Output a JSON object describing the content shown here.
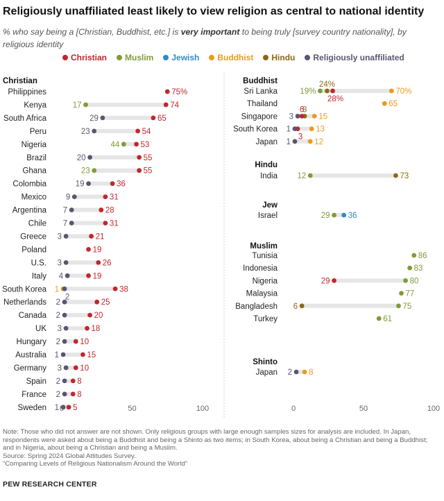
{
  "title": "Religiously unaffiliated least likely to view religion as central to national identity",
  "subtitle_pre": "% who say being a [Christian, Buddhist, etc.] is ",
  "subtitle_bold": "very important",
  "subtitle_post": " to being truly [survey country nationality], by religious identity",
  "legend": [
    {
      "key": "christian",
      "label": "Christian",
      "color": "#c1272d"
    },
    {
      "key": "muslim",
      "label": "Muslim",
      "color": "#7f9b3a"
    },
    {
      "key": "jewish",
      "label": "Jewish",
      "color": "#2e8bc9"
    },
    {
      "key": "buddhist",
      "label": "Buddhist",
      "color": "#ec9a1e"
    },
    {
      "key": "hindu",
      "label": "Hindu",
      "color": "#8b6914"
    },
    {
      "key": "unaffiliated",
      "label": "Religiously unaffiliated",
      "color": "#5b5572"
    }
  ],
  "colors": {
    "christian": "#c1272d",
    "muslim": "#7f9b3a",
    "jewish": "#2e8bc9",
    "buddhist": "#ec9a1e",
    "hindu": "#8b6914",
    "unaffiliated": "#5b5572",
    "bar": "#e6e6e6",
    "axis": "#bbbbbb"
  },
  "chart_data": [
    {
      "type": "dot",
      "panel": "left",
      "section": "Christian",
      "xlim": [
        0,
        100
      ],
      "ticks": [
        0,
        50,
        100
      ],
      "rows": [
        {
          "country": "Philippines",
          "points": [
            {
              "g": "christian",
              "v": 75,
              "label": "75%"
            }
          ]
        },
        {
          "country": "Kenya",
          "points": [
            {
              "g": "christian",
              "v": 74,
              "label": "74"
            },
            {
              "g": "muslim",
              "v": 17,
              "label": "17"
            }
          ]
        },
        {
          "country": "South Africa",
          "points": [
            {
              "g": "christian",
              "v": 65,
              "label": "65"
            },
            {
              "g": "unaffiliated",
              "v": 29,
              "label": "29"
            }
          ]
        },
        {
          "country": "Peru",
          "points": [
            {
              "g": "christian",
              "v": 54,
              "label": "54"
            },
            {
              "g": "unaffiliated",
              "v": 23,
              "label": "23"
            }
          ]
        },
        {
          "country": "Nigeria",
          "points": [
            {
              "g": "christian",
              "v": 53,
              "label": "53"
            },
            {
              "g": "muslim",
              "v": 44,
              "label": "44"
            }
          ]
        },
        {
          "country": "Brazil",
          "points": [
            {
              "g": "christian",
              "v": 55,
              "label": "55"
            },
            {
              "g": "unaffiliated",
              "v": 20,
              "label": "20"
            }
          ]
        },
        {
          "country": "Ghana",
          "points": [
            {
              "g": "christian",
              "v": 55,
              "label": "55"
            },
            {
              "g": "muslim",
              "v": 23,
              "label": "23"
            }
          ]
        },
        {
          "country": "Colombia",
          "points": [
            {
              "g": "christian",
              "v": 36,
              "label": "36"
            },
            {
              "g": "unaffiliated",
              "v": 19,
              "label": "19"
            }
          ]
        },
        {
          "country": "Mexico",
          "points": [
            {
              "g": "christian",
              "v": 31,
              "label": "31"
            },
            {
              "g": "unaffiliated",
              "v": 9,
              "label": "9"
            }
          ]
        },
        {
          "country": "Argentina",
          "points": [
            {
              "g": "christian",
              "v": 28,
              "label": "28"
            },
            {
              "g": "unaffiliated",
              "v": 7,
              "label": "7"
            }
          ]
        },
        {
          "country": "Chile",
          "points": [
            {
              "g": "christian",
              "v": 31,
              "label": "31"
            },
            {
              "g": "unaffiliated",
              "v": 7,
              "label": "7"
            }
          ]
        },
        {
          "country": "Greece",
          "points": [
            {
              "g": "christian",
              "v": 21,
              "label": "21"
            },
            {
              "g": "unaffiliated",
              "v": 3,
              "label": "3"
            }
          ]
        },
        {
          "country": "Poland",
          "points": [
            {
              "g": "christian",
              "v": 19,
              "label": "19"
            }
          ]
        },
        {
          "country": "U.S.",
          "points": [
            {
              "g": "christian",
              "v": 26,
              "label": "26"
            },
            {
              "g": "unaffiliated",
              "v": 3,
              "label": "3"
            }
          ]
        },
        {
          "country": "Italy",
          "points": [
            {
              "g": "christian",
              "v": 19,
              "label": "19"
            },
            {
              "g": "unaffiliated",
              "v": 4,
              "label": "4"
            }
          ]
        },
        {
          "country": "South Korea",
          "points": [
            {
              "g": "christian",
              "v": 38,
              "label": "38"
            },
            {
              "g": "buddhist",
              "v": 1,
              "label": "1"
            },
            {
              "g": "unaffiliated",
              "v": 2,
              "label": "2",
              "below": true
            }
          ]
        },
        {
          "country": "Netherlands",
          "points": [
            {
              "g": "christian",
              "v": 25,
              "label": "25"
            },
            {
              "g": "unaffiliated",
              "v": 2,
              "label": "2"
            }
          ]
        },
        {
          "country": "Canada",
          "points": [
            {
              "g": "christian",
              "v": 20,
              "label": "20"
            },
            {
              "g": "unaffiliated",
              "v": 2,
              "label": "2"
            }
          ]
        },
        {
          "country": "UK",
          "points": [
            {
              "g": "christian",
              "v": 18,
              "label": "18"
            },
            {
              "g": "unaffiliated",
              "v": 3,
              "label": "3"
            }
          ]
        },
        {
          "country": "Hungary",
          "points": [
            {
              "g": "christian",
              "v": 10,
              "label": "10"
            },
            {
              "g": "unaffiliated",
              "v": 2,
              "label": "2"
            }
          ]
        },
        {
          "country": "Australia",
          "points": [
            {
              "g": "christian",
              "v": 15,
              "label": "15"
            },
            {
              "g": "unaffiliated",
              "v": 1,
              "label": "1"
            }
          ]
        },
        {
          "country": "Germany",
          "points": [
            {
              "g": "christian",
              "v": 10,
              "label": "10"
            },
            {
              "g": "unaffiliated",
              "v": 3,
              "label": "3"
            }
          ]
        },
        {
          "country": "Spain",
          "points": [
            {
              "g": "christian",
              "v": 8,
              "label": "8"
            },
            {
              "g": "unaffiliated",
              "v": 2,
              "label": "2"
            }
          ]
        },
        {
          "country": "France",
          "points": [
            {
              "g": "christian",
              "v": 8,
              "label": "8"
            },
            {
              "g": "unaffiliated",
              "v": 2,
              "label": "2"
            }
          ]
        },
        {
          "country": "Sweden",
          "points": [
            {
              "g": "christian",
              "v": 5,
              "label": "5"
            },
            {
              "g": "unaffiliated",
              "v": 1,
              "label": "1"
            }
          ]
        }
      ]
    },
    {
      "type": "dot",
      "panel": "right",
      "section": "Buddhist",
      "xlim": [
        0,
        100
      ],
      "rows": [
        {
          "country": "Sri Lanka",
          "points": [
            {
              "g": "buddhist",
              "v": 70,
              "label": "70%"
            },
            {
              "g": "christian",
              "v": 28,
              "label": "28%",
              "below": true
            },
            {
              "g": "hindu",
              "v": 24,
              "label": "24%",
              "above": true
            },
            {
              "g": "muslim",
              "v": 19,
              "label": "19%"
            }
          ]
        },
        {
          "country": "Thailand",
          "points": [
            {
              "g": "buddhist",
              "v": 65,
              "label": "65"
            }
          ]
        },
        {
          "country": "Singapore",
          "points": [
            {
              "g": "buddhist",
              "v": 15,
              "label": "15"
            },
            {
              "g": "hindu",
              "v": 8,
              "label": "8",
              "above": true
            },
            {
              "g": "christian",
              "v": 6,
              "label": "6",
              "above": true
            },
            {
              "g": "unaffiliated",
              "v": 3,
              "label": "3"
            }
          ]
        },
        {
          "country": "South Korea",
          "points": [
            {
              "g": "buddhist",
              "v": 13,
              "label": "13"
            },
            {
              "g": "christian",
              "v": 3,
              "label": "3",
              "below": true
            },
            {
              "g": "unaffiliated",
              "v": 1,
              "label": "1"
            }
          ]
        },
        {
          "country": "Japan",
          "points": [
            {
              "g": "buddhist",
              "v": 12,
              "label": "12"
            },
            {
              "g": "unaffiliated",
              "v": 1,
              "label": "1"
            }
          ]
        }
      ]
    },
    {
      "type": "dot",
      "panel": "right",
      "section": "Hindu",
      "xlim": [
        0,
        100
      ],
      "rows": [
        {
          "country": "India",
          "points": [
            {
              "g": "hindu",
              "v": 73,
              "label": "73"
            },
            {
              "g": "muslim",
              "v": 12,
              "label": "12"
            }
          ]
        }
      ]
    },
    {
      "type": "dot",
      "panel": "right",
      "section": "Jew",
      "xlim": [
        0,
        100
      ],
      "rows": [
        {
          "country": "Israel",
          "points": [
            {
              "g": "jewish",
              "v": 36,
              "label": "36"
            },
            {
              "g": "muslim",
              "v": 29,
              "label": "29"
            }
          ]
        }
      ]
    },
    {
      "type": "dot",
      "panel": "right",
      "section": "Muslim",
      "xlim": [
        0,
        100
      ],
      "rows": [
        {
          "country": "Tunisia",
          "points": [
            {
              "g": "muslim",
              "v": 86,
              "label": "86"
            }
          ]
        },
        {
          "country": "Indonesia",
          "points": [
            {
              "g": "muslim",
              "v": 83,
              "label": "83"
            }
          ]
        },
        {
          "country": "Nigeria",
          "points": [
            {
              "g": "muslim",
              "v": 80,
              "label": "80"
            },
            {
              "g": "christian",
              "v": 29,
              "label": "29"
            }
          ]
        },
        {
          "country": "Malaysia",
          "points": [
            {
              "g": "muslim",
              "v": 77,
              "label": "77"
            }
          ]
        },
        {
          "country": "Bangladesh",
          "points": [
            {
              "g": "muslim",
              "v": 75,
              "label": "75"
            },
            {
              "g": "hindu",
              "v": 6,
              "label": "6"
            }
          ]
        },
        {
          "country": "Turkey",
          "points": [
            {
              "g": "muslim",
              "v": 61,
              "label": "61"
            }
          ]
        }
      ]
    },
    {
      "type": "dot",
      "panel": "right",
      "section": "Shinto",
      "xlim": [
        0,
        100
      ],
      "ticks": [
        0,
        50,
        100
      ],
      "rows": [
        {
          "country": "Japan",
          "points": [
            {
              "g": "buddhist",
              "v": 8,
              "label": "8"
            },
            {
              "g": "unaffiliated",
              "v": 2,
              "label": "2"
            }
          ]
        }
      ]
    }
  ],
  "notes": [
    "Note: Those who did not answer are not shown. Only religious groups with large enough samples sizes for analysis are included. In Japan, respondents were asked about being a Buddhist and being a Shinto as two items; in South Korea, about being a Christian and being a Buddhist; and in Nigeria, about being a Christian and being a Muslim.",
    "Source: Spring 2024 Global Attitudes Survey.",
    "“Comparing Levels of Religious Nationalism Around the World”"
  ],
  "org": "PEW RESEARCH CENTER"
}
